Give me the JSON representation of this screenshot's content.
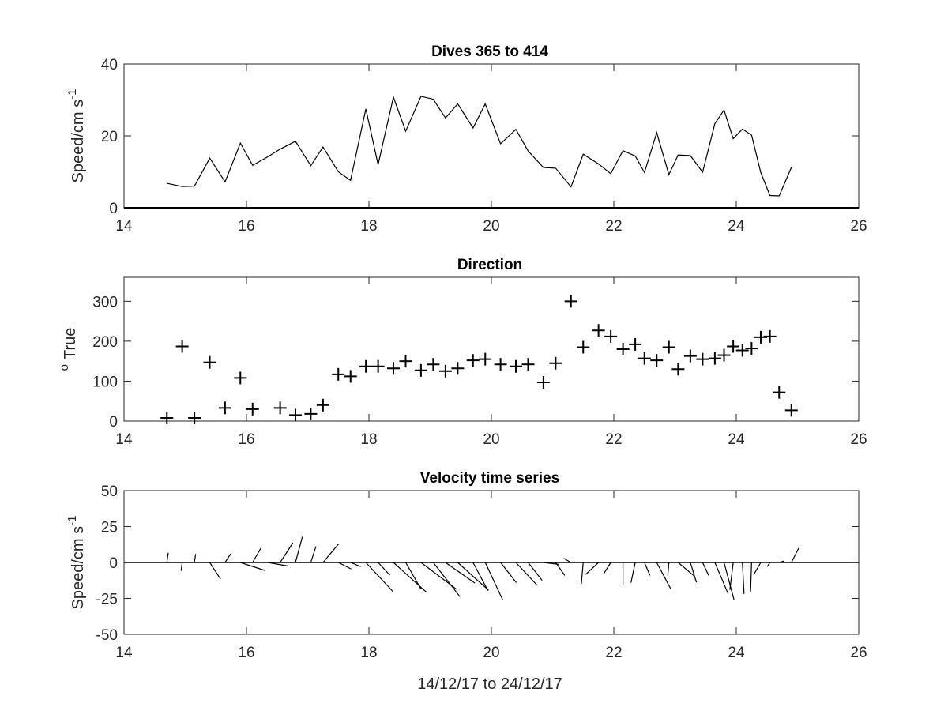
{
  "chart_data": [
    {
      "type": "line",
      "title": "Dives 365 to 414",
      "ylabel": "Speed/cm s",
      "ylabel_superscript": "-1",
      "xlim": [
        14,
        26
      ],
      "ylim": [
        0,
        40
      ],
      "xticks": [
        14,
        16,
        18,
        20,
        22,
        24,
        26
      ],
      "yticks": [
        0,
        20,
        40
      ],
      "grid": false,
      "color": "#000000",
      "series": [
        {
          "x": [
            14.7,
            14.95,
            15.15,
            15.4,
            15.65,
            15.9,
            16.1,
            16.35,
            16.55,
            16.8,
            17.05,
            17.25,
            17.5,
            17.7,
            17.95,
            18.15,
            18.4,
            18.6,
            18.85,
            19.05,
            19.25,
            19.45,
            19.7,
            19.9,
            20.15,
            20.4,
            20.6,
            20.85,
            21.05,
            21.3,
            21.5,
            21.75,
            21.95,
            22.15,
            22.35,
            22.5,
            22.7,
            22.9,
            23.05,
            23.25,
            23.45,
            23.65,
            23.8,
            23.95,
            24.1,
            24.25,
            24.4,
            24.55,
            24.7,
            24.9
          ],
          "y": [
            6.8,
            5.9,
            6.0,
            13.8,
            7.2,
            18.0,
            11.8,
            14.2,
            16.3,
            18.5,
            11.7,
            16.9,
            10.0,
            7.6,
            27.5,
            12.0,
            30.8,
            21.3,
            31.0,
            30.2,
            25.0,
            28.9,
            22.2,
            28.9,
            17.8,
            21.8,
            15.8,
            11.2,
            11.0,
            5.8,
            14.9,
            12.2,
            9.5,
            15.9,
            14.4,
            9.8,
            20.9,
            9.2,
            14.7,
            14.5,
            9.9,
            23.4,
            27.2,
            19.2,
            21.9,
            20.2,
            9.8,
            3.4,
            3.3,
            11.2
          ]
        }
      ]
    },
    {
      "type": "scatter",
      "title": "Direction",
      "ylabel": "True",
      "ylabel_superscript": "o",
      "xlim": [
        14,
        26
      ],
      "ylim": [
        0,
        360
      ],
      "xticks": [
        14,
        16,
        18,
        20,
        22,
        24,
        26
      ],
      "yticks": [
        0,
        100,
        200,
        300
      ],
      "grid": false,
      "marker": "+",
      "color": "#000000",
      "series": [
        {
          "x": [
            14.7,
            14.95,
            15.15,
            15.4,
            15.65,
            15.9,
            16.1,
            16.55,
            16.8,
            17.05,
            17.25,
            17.5,
            17.7,
            17.95,
            18.15,
            18.4,
            18.6,
            18.85,
            19.05,
            19.25,
            19.45,
            19.7,
            19.9,
            20.15,
            20.4,
            20.6,
            20.85,
            21.05,
            21.3,
            21.5,
            21.75,
            21.95,
            22.15,
            22.35,
            22.5,
            22.7,
            22.9,
            23.05,
            23.25,
            23.45,
            23.65,
            23.8,
            23.95,
            24.1,
            24.25,
            24.4,
            24.55,
            24.7,
            24.9
          ],
          "y": [
            8,
            187,
            8,
            147,
            33,
            108,
            30,
            33,
            15,
            18,
            40,
            117,
            112,
            137,
            137,
            132,
            150,
            127,
            142,
            125,
            132,
            152,
            155,
            142,
            137,
            142,
            97,
            145,
            300,
            185,
            227,
            212,
            180,
            192,
            157,
            152,
            185,
            130,
            163,
            155,
            157,
            165,
            187,
            177,
            182,
            210,
            212,
            72,
            27
          ]
        }
      ]
    },
    {
      "type": "stick",
      "title": "Velocity time series",
      "ylabel": "Speed/cm s",
      "ylabel_superscript": "-1",
      "xlabel": "14/12/17 to 24/12/17",
      "xlim": [
        14,
        26
      ],
      "ylim": [
        -50,
        50
      ],
      "xticks": [
        14,
        16,
        18,
        20,
        22,
        24,
        26
      ],
      "yticks": [
        -50,
        -25,
        0,
        25,
        50
      ],
      "yticklabels": [
        "-50",
        "-25",
        "0",
        "25",
        "50"
      ],
      "grid": false,
      "baseline": 0,
      "color": "#000000",
      "series": [
        {
          "x": [
            14.7,
            14.95,
            15.15,
            15.4,
            15.65,
            15.9,
            16.1,
            16.35,
            16.55,
            16.8,
            17.05,
            17.25,
            17.5,
            17.7,
            17.95,
            18.15,
            18.4,
            18.6,
            18.85,
            19.05,
            19.25,
            19.45,
            19.7,
            19.9,
            20.15,
            20.4,
            20.6,
            20.85,
            21.05,
            21.3,
            21.5,
            21.75,
            21.95,
            22.15,
            22.35,
            22.5,
            22.7,
            22.9,
            23.05,
            23.25,
            23.45,
            23.65,
            23.8,
            23.95,
            24.1,
            24.25,
            24.4,
            24.55,
            24.7,
            24.9
          ],
          "speed": [
            6.8,
            5.9,
            6.0,
            13.8,
            7.2,
            18.0,
            11.8,
            14.2,
            16.3,
            18.5,
            11.7,
            16.9,
            10.0,
            7.6,
            27.5,
            12.0,
            30.8,
            21.3,
            31.0,
            30.2,
            25.0,
            28.9,
            22.2,
            28.9,
            17.8,
            21.8,
            15.8,
            11.2,
            11.0,
            5.8,
            14.9,
            12.2,
            9.5,
            15.9,
            14.4,
            9.8,
            20.9,
            9.2,
            14.7,
            14.5,
            9.9,
            23.4,
            27.2,
            19.2,
            21.9,
            20.2,
            9.8,
            3.4,
            3.3,
            11.2
          ],
          "direction": [
            8,
            187,
            8,
            147,
            33,
            108,
            30,
            100,
            33,
            15,
            18,
            40,
            117,
            112,
            137,
            137,
            132,
            150,
            127,
            142,
            125,
            132,
            152,
            155,
            142,
            137,
            142,
            97,
            145,
            300,
            185,
            227,
            212,
            180,
            192,
            157,
            152,
            185,
            130,
            163,
            155,
            157,
            165,
            187,
            177,
            182,
            210,
            212,
            72,
            27
          ]
        }
      ]
    }
  ]
}
